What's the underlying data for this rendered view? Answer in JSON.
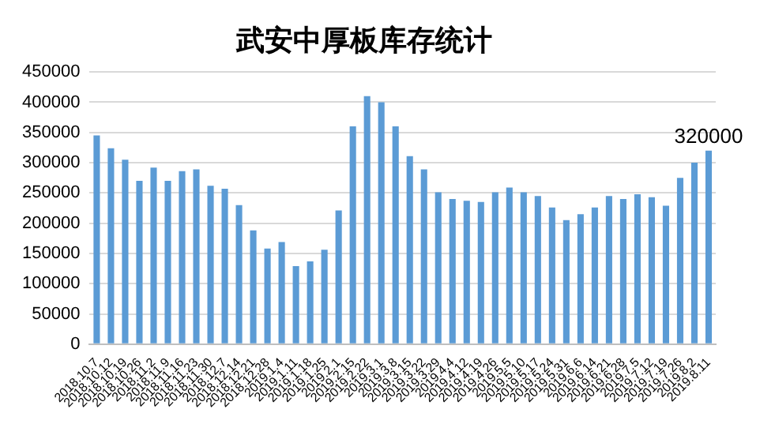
{
  "chart_data": {
    "type": "bar",
    "title": "武安中厚板库存统计",
    "categories": [
      "2018.10.7",
      "2018.10.12",
      "2018.10.19",
      "2018.10.26",
      "2018.11.2",
      "2018.11.9",
      "2018.11.16",
      "2018.11.23",
      "2018.11.30",
      "2018.12.7",
      "2018.12.14",
      "2018.12.21",
      "2018.12.28",
      "2019.1.4",
      "2019.1.11",
      "2019.1.18",
      "2019.1.25",
      "2019.2.1",
      "2019.2.15",
      "2019.2.22",
      "2019.3.1",
      "2019.3.8",
      "2019.3.15",
      "2019.3.22",
      "2019.3.29",
      "2019.4.4",
      "2019.4.12",
      "2019.4.19",
      "2019.4.26",
      "2019.5.5",
      "2019.5.10",
      "2019.5.17",
      "2019.5.24",
      "2019.5.31",
      "2019.6.6",
      "2019.6.14",
      "2019.6.21",
      "2019.6.28",
      "2019.7.5",
      "2019.7.12",
      "2019.7.19",
      "2019.7.26",
      "2019.8.2",
      "2019.8.11"
    ],
    "values": [
      345000,
      324000,
      305000,
      270000,
      292000,
      270000,
      286000,
      289000,
      262000,
      257000,
      230000,
      188000,
      158000,
      169000,
      129000,
      137000,
      156000,
      221000,
      360000,
      410000,
      400000,
      360000,
      311000,
      289000,
      251000,
      240000,
      237000,
      235000,
      251000,
      259000,
      251000,
      245000,
      226000,
      205000,
      215000,
      226000,
      245000,
      240000,
      248000,
      243000,
      229000,
      275000,
      300000,
      320000
    ],
    "value_labels": [
      null,
      null,
      null,
      null,
      null,
      null,
      null,
      null,
      null,
      null,
      null,
      null,
      null,
      null,
      null,
      null,
      null,
      null,
      null,
      null,
      null,
      null,
      null,
      null,
      null,
      null,
      null,
      null,
      null,
      null,
      null,
      null,
      null,
      null,
      null,
      null,
      null,
      null,
      null,
      null,
      null,
      null,
      null,
      "320000"
    ],
    "color": "#5b9bd5",
    "ylim": [
      0,
      450000
    ],
    "yticks": [
      0,
      50000,
      100000,
      150000,
      200000,
      250000,
      300000,
      350000,
      400000,
      450000
    ],
    "grid": "y",
    "legend": false
  }
}
